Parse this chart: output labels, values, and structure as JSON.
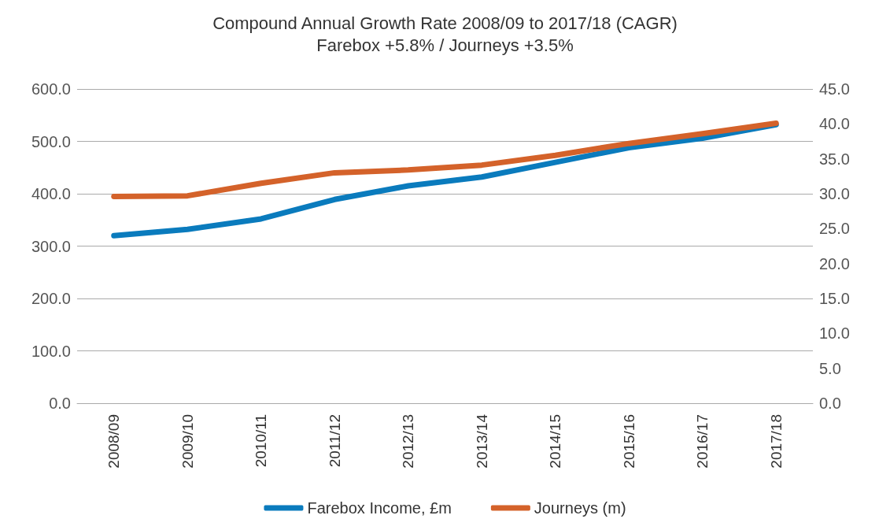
{
  "chart_data": {
    "type": "line",
    "title": "Compound Annual Growth Rate 2008/09 to 2017/18 (CAGR)",
    "subtitle": "Farebox +5.8% / Journeys +3.5%",
    "categories": [
      "2008/09",
      "2009/10",
      "2010/11",
      "2011/12",
      "2012/13",
      "2013/14",
      "2014/15",
      "2015/16",
      "2016/17",
      "2017/18"
    ],
    "series": [
      {
        "name": "Farebox Income, £m",
        "color": "#0a7bbd",
        "values": [
          320,
          332,
          352,
          389,
          415,
          432,
          460,
          488,
          506,
          532
        ]
      },
      {
        "name": "Journeys (m)",
        "color": "#d4622a",
        "axis": "y2",
        "values": [
          29.6,
          29.7,
          31.5,
          33.0,
          33.4,
          34.1,
          35.5,
          37.2,
          38.6,
          40.1
        ]
      }
    ],
    "ylim": [
      0,
      600
    ],
    "yticks": [
      {
        "value": 0,
        "label": "0.0"
      },
      {
        "value": 100,
        "label": "100.0"
      },
      {
        "value": 200,
        "label": "200.0"
      },
      {
        "value": 300,
        "label": "300.0"
      },
      {
        "value": 400,
        "label": "400.0"
      },
      {
        "value": 500,
        "label": "500.0"
      },
      {
        "value": 600,
        "label": "600.0"
      }
    ],
    "y2lim": [
      0,
      45
    ],
    "y2ticks": [
      {
        "value": 0,
        "label": "0.0"
      },
      {
        "value": 5,
        "label": "5.0"
      },
      {
        "value": 10,
        "label": "10.0"
      },
      {
        "value": 15,
        "label": "15.0"
      },
      {
        "value": 20,
        "label": "20.0"
      },
      {
        "value": 25,
        "label": "25.0"
      },
      {
        "value": 30,
        "label": "30.0"
      },
      {
        "value": 35,
        "label": "35.0"
      },
      {
        "value": 40,
        "label": "40.0"
      },
      {
        "value": 45,
        "label": "45.0"
      }
    ],
    "grid": "y",
    "legend": "bottom",
    "marker": "none",
    "line_style": "solid"
  }
}
